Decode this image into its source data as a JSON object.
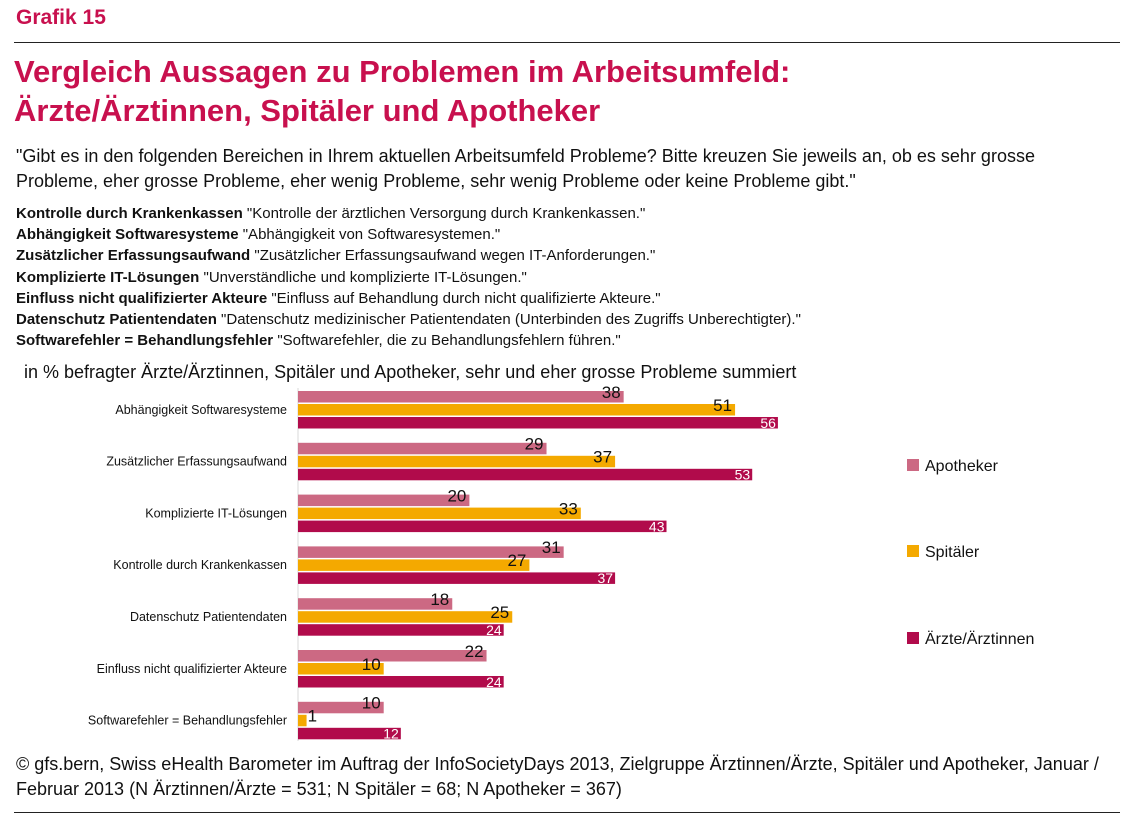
{
  "header": {
    "grafik": "Grafik 15",
    "title_line1": "Vergleich Aussagen zu Problemen im Arbeitsumfeld:",
    "title_line2": "Ärzte/Ärztinnen, Spitäler und Apotheker"
  },
  "question": "\"Gibt es in den folgenden Bereichen in Ihrem aktuellen Arbeitsumfeld Probleme? Bitte kreuzen Sie jeweils an, ob es sehr grosse Probleme, eher grosse Probleme, eher wenig Probleme, sehr wenig Probleme oder keine Probleme gibt.\"",
  "definitions": [
    {
      "term": "Kontrolle durch Krankenkassen",
      "text": "\"Kontrolle der ärztlichen Versorgung durch Krankenkassen.\""
    },
    {
      "term": "Abhängigkeit Softwaresysteme",
      "text": "\"Abhängigkeit von Softwaresystemen.\""
    },
    {
      "term": "Zusätzlicher Erfassungsaufwand",
      "text": "\"Zusätzlicher Erfassungsaufwand wegen IT-Anforderungen.\""
    },
    {
      "term": "Komplizierte IT-Lösungen",
      "text": "\"Unverständliche und komplizierte IT-Lösungen.\""
    },
    {
      "term": "Einfluss nicht qualifizierter Akteure",
      "text": "\"Einfluss auf Behandlung durch nicht qualifizierte Akteure.\""
    },
    {
      "term": "Datenschutz Patientendaten",
      "text": "\"Datenschutz medizinischer Patientendaten (Unterbinden des Zugriffs Unberechtigter).\""
    },
    {
      "term": "Softwarefehler = Behandlungsfehler",
      "text": "\"Softwarefehler, die zu Behandlungsfehlern führen.\""
    }
  ],
  "unit_label": "in % befragter Ärzte/Ärztinnen, Spitäler und Apotheker, sehr und eher grosse Probleme summiert",
  "source": "© gfs.bern, Swiss eHealth Barometer im Auftrag der InfoSocietyDays 2013, Zielgruppe Ärztinnen/Ärzte, Spitäler und Apotheker, Januar / Februar 2013 (N Ärztinnen/Ärzte = 531; N Spitäler = 68; N Apotheker = 367)",
  "chart_data": {
    "type": "bar",
    "orientation": "horizontal",
    "categories": [
      "Abhängigkeit Softwaresysteme",
      "Zusätzlicher Erfassungsaufwand",
      "Komplizierte IT-Lösungen",
      "Kontrolle durch Krankenkassen",
      "Datenschutz Patientendaten",
      "Einfluss nicht qualifizierter Akteure",
      "Softwarefehler = Behandlungsfehler"
    ],
    "series": [
      {
        "name": "Apotheker",
        "color": "#cc6983",
        "label_color": "#111111",
        "values": [
          38,
          29,
          20,
          31,
          18,
          22,
          10
        ]
      },
      {
        "name": "Spitäler",
        "color": "#f4a900",
        "label_color": "#111111",
        "values": [
          51,
          37,
          33,
          27,
          25,
          10,
          1
        ]
      },
      {
        "name": "Ärzte/Ärztinnen",
        "color": "#b10b4b",
        "label_color": "#ffffff",
        "values": [
          56,
          53,
          43,
          37,
          24,
          24,
          12
        ]
      }
    ],
    "xlim": [
      0,
      100
    ],
    "grid": false,
    "legend_position": "right"
  }
}
